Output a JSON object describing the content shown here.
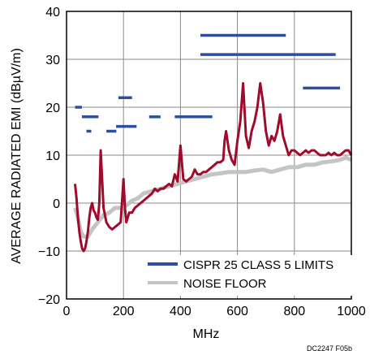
{
  "chart_data": {
    "type": "line",
    "title": "",
    "xlabel": "MHz",
    "ylabel": "AVERAGE RADIATED EMI (dBµV/m)",
    "xlim": [
      0,
      1000
    ],
    "ylim": [
      -20,
      40
    ],
    "xticks": [
      0,
      200,
      400,
      600,
      800,
      1000
    ],
    "yticks": [
      -20,
      -10,
      0,
      10,
      20,
      30,
      40
    ],
    "grid": true,
    "legend_position": "bottom-right",
    "figure_id": "DC2247 F05b",
    "colors": {
      "limits": "#2e4e9e",
      "noise": "#c4c4c4",
      "emi": "#9e0b2c"
    },
    "limits": {
      "name": "CISPR 25 CLASS 5 LIMITS",
      "segments": [
        {
          "x": [
            30,
            54
          ],
          "y": 20
        },
        {
          "x": [
            54,
            112
          ],
          "y": 18
        },
        {
          "x": [
            70,
            87
          ],
          "y": 15
        },
        {
          "x": [
            140,
            175
          ],
          "y": 15
        },
        {
          "x": [
            174,
            246
          ],
          "y": 16
        },
        {
          "x": [
            182,
            230
          ],
          "y": 22
        },
        {
          "x": [
            290,
            330
          ],
          "y": 18
        },
        {
          "x": [
            380,
            512
          ],
          "y": 18
        },
        {
          "x": [
            470,
            770
          ],
          "y": 35
        },
        {
          "x": [
            470,
            945
          ],
          "y": 31
        },
        {
          "x": [
            830,
            960
          ],
          "y": 24
        }
      ]
    },
    "noise_floor": {
      "name": "NOISE FLOOR",
      "x": [
        30,
        40,
        50,
        60,
        75,
        90,
        110,
        130,
        150,
        170,
        190,
        210,
        230,
        250,
        270,
        300,
        330,
        360,
        390,
        420,
        450,
        480,
        510,
        540,
        570,
        600,
        630,
        660,
        690,
        720,
        750,
        780,
        810,
        840,
        870,
        900,
        930,
        960,
        980,
        1000
      ],
      "y": [
        -1,
        -3,
        -6,
        -7,
        -7,
        -5.5,
        -4,
        -2.5,
        -2,
        -1,
        -1,
        -0.5,
        0.5,
        1,
        2,
        2.5,
        3,
        3.5,
        4,
        4.5,
        5,
        5.5,
        6,
        6.2,
        6.5,
        6.5,
        6.5,
        6.8,
        7,
        6.5,
        7,
        7.5,
        7.5,
        8,
        8,
        8.5,
        8.7,
        9,
        9.5,
        9
      ]
    },
    "emi_series": {
      "x": [
        30,
        35,
        40,
        45,
        50,
        55,
        60,
        65,
        70,
        75,
        80,
        85,
        90,
        95,
        100,
        105,
        110,
        115,
        120,
        130,
        140,
        150,
        160,
        170,
        180,
        190,
        200,
        205,
        210,
        215,
        220,
        230,
        240,
        250,
        260,
        270,
        280,
        290,
        300,
        310,
        320,
        330,
        340,
        350,
        360,
        370,
        380,
        390,
        400,
        410,
        420,
        430,
        440,
        450,
        460,
        470,
        480,
        490,
        500,
        510,
        520,
        530,
        540,
        550,
        555,
        560,
        570,
        580,
        590,
        600,
        610,
        620,
        630,
        640,
        650,
        660,
        670,
        680,
        690,
        700,
        710,
        720,
        730,
        740,
        750,
        760,
        770,
        780,
        790,
        800,
        810,
        820,
        830,
        840,
        850,
        860,
        870,
        880,
        890,
        900,
        910,
        920,
        930,
        940,
        950,
        960,
        970,
        980,
        990,
        1000
      ],
      "y": [
        4,
        1,
        -3,
        -6,
        -8,
        -9.5,
        -10,
        -9.5,
        -8,
        -6,
        -3,
        -1,
        0,
        -1.5,
        -2,
        -3,
        -3.5,
        0,
        11,
        -1,
        -4,
        -5,
        -5.5,
        -5,
        -4.5,
        -4,
        5,
        -1,
        -4,
        -3,
        -2,
        -2,
        -1,
        -0.5,
        0,
        0.5,
        1,
        1.5,
        2,
        3,
        2.5,
        3,
        3,
        3.5,
        4,
        3.5,
        6,
        4.5,
        12,
        5,
        4.5,
        5,
        5.5,
        7,
        6,
        6,
        6.5,
        6.5,
        7,
        7.5,
        8,
        8.5,
        8.5,
        9,
        13,
        15,
        11,
        9,
        8,
        13,
        17,
        25,
        14,
        11.5,
        15,
        17,
        20,
        25,
        21,
        15,
        12,
        14,
        13,
        15,
        18.5,
        14,
        12,
        10,
        11,
        11,
        10.5,
        10,
        10.5,
        11,
        10.5,
        11,
        11,
        10.5,
        10,
        10,
        10,
        10.5,
        10,
        10.5,
        10,
        10,
        10.5,
        11,
        11,
        10
      ]
    }
  }
}
